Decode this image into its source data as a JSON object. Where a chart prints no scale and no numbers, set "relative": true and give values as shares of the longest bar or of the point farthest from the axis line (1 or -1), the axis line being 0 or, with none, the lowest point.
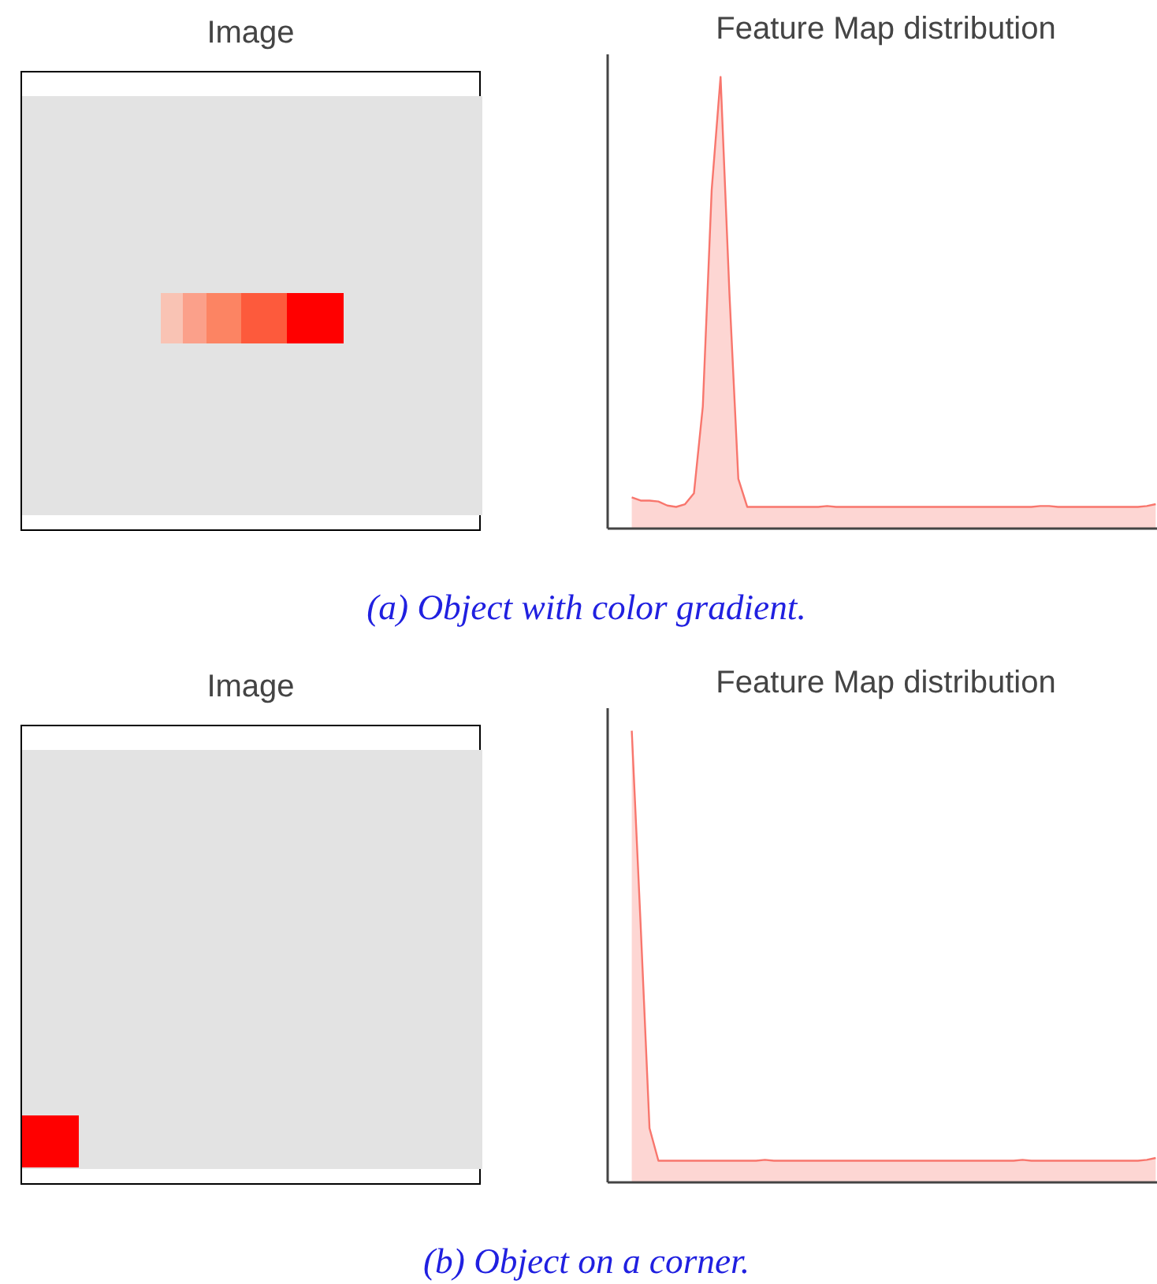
{
  "chart_data": [
    {
      "type": "other",
      "title": "Image"
    },
    {
      "type": "area",
      "title": "Feature Map distribution",
      "relative": true,
      "annotations": [
        "(a) Object with color gradient."
      ],
      "categories": [
        null,
        null,
        null,
        null,
        null,
        null,
        null,
        null,
        null,
        null,
        null,
        null,
        null,
        null,
        null,
        null,
        null,
        null,
        null,
        null,
        null,
        null,
        null,
        null,
        null,
        null,
        null,
        null,
        null,
        null,
        null,
        null,
        null,
        null,
        null,
        null,
        null,
        null,
        null,
        null,
        null,
        null,
        null,
        null,
        null,
        null,
        null,
        null,
        null,
        null,
        null,
        null,
        null,
        null,
        null,
        null,
        null,
        null,
        null,
        null
      ],
      "series": [
        {
          "color": "#f8766d",
          "values": [
            0.069,
            0.062,
            0.062,
            0.06,
            0.051,
            0.048,
            0.054,
            0.078,
            0.27,
            0.75,
            1.0,
            0.52,
            0.11,
            0.048,
            0.048,
            0.048,
            0.048,
            0.048,
            0.048,
            0.048,
            0.048,
            0.048,
            0.05,
            0.048,
            0.048,
            0.048,
            0.048,
            0.048,
            0.048,
            0.048,
            0.048,
            0.048,
            0.048,
            0.048,
            0.048,
            0.048,
            0.048,
            0.048,
            0.048,
            0.048,
            0.048,
            0.048,
            0.048,
            0.048,
            0.048,
            0.048,
            0.05,
            0.05,
            0.048,
            0.048,
            0.048,
            0.048,
            0.048,
            0.048,
            0.048,
            0.048,
            0.048,
            0.048,
            0.05,
            0.054
          ]
        }
      ]
    },
    {
      "type": "other",
      "title": "Image"
    },
    {
      "type": "area",
      "title": "Feature Map distribution",
      "relative": true,
      "annotations": [
        "(b) Object on a corner."
      ],
      "categories": [
        null,
        null,
        null,
        null,
        null,
        null,
        null,
        null,
        null,
        null,
        null,
        null,
        null,
        null,
        null,
        null,
        null,
        null,
        null,
        null,
        null,
        null,
        null,
        null,
        null,
        null,
        null,
        null,
        null,
        null,
        null,
        null,
        null,
        null,
        null,
        null,
        null,
        null,
        null,
        null,
        null,
        null,
        null,
        null,
        null,
        null,
        null,
        null,
        null,
        null,
        null,
        null,
        null,
        null,
        null,
        null,
        null,
        null,
        null,
        null
      ],
      "series": [
        {
          "color": "#f8766d",
          "values": [
            1.0,
            0.57,
            0.12,
            0.048,
            0.048,
            0.048,
            0.048,
            0.048,
            0.048,
            0.048,
            0.048,
            0.048,
            0.048,
            0.048,
            0.048,
            0.05,
            0.048,
            0.048,
            0.048,
            0.048,
            0.048,
            0.048,
            0.048,
            0.048,
            0.048,
            0.048,
            0.048,
            0.048,
            0.048,
            0.048,
            0.048,
            0.048,
            0.048,
            0.048,
            0.048,
            0.048,
            0.048,
            0.048,
            0.048,
            0.048,
            0.048,
            0.048,
            0.048,
            0.048,
            0.05,
            0.048,
            0.048,
            0.048,
            0.048,
            0.048,
            0.048,
            0.048,
            0.048,
            0.048,
            0.048,
            0.048,
            0.048,
            0.048,
            0.05,
            0.054
          ]
        }
      ]
    }
  ]
}
